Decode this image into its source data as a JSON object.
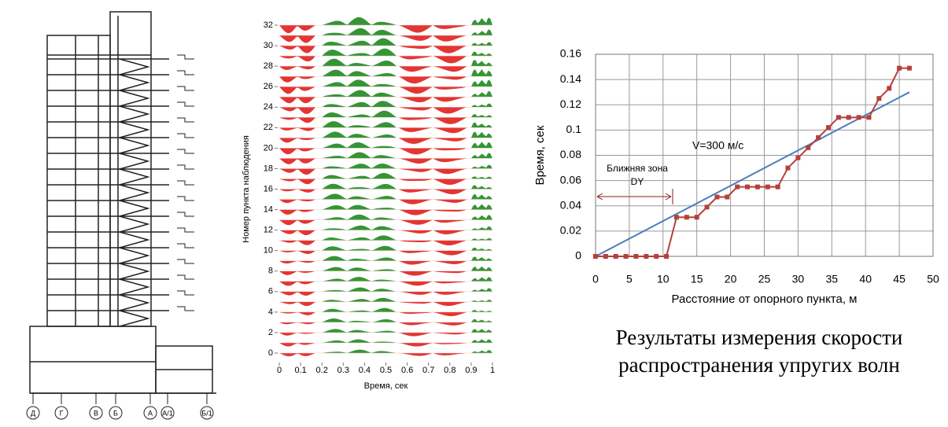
{
  "drawing": {
    "axis_labels": [
      "Д",
      "Г",
      "В",
      "Б",
      "А",
      "А/1",
      "Б/1"
    ]
  },
  "chart_data": [
    {
      "type": "wiggle",
      "xlabel": "Время, сек",
      "ylabel": "Номер пункта наблюдения",
      "xlim": [
        0,
        1
      ],
      "xticks": [
        0,
        0.1,
        0.2,
        0.3,
        0.4,
        0.5,
        0.6,
        0.7,
        0.8,
        0.9,
        1
      ],
      "ylim": [
        0,
        32
      ],
      "yticks": [
        0,
        2,
        4,
        6,
        8,
        10,
        12,
        14,
        16,
        18,
        20,
        22,
        24,
        26,
        28,
        30,
        32
      ],
      "colors": [
        "#e0201c",
        "#1f8a1f"
      ]
    },
    {
      "type": "line",
      "xlabel": "Расстояние от опорного пункта, м",
      "ylabel": "Время, сек",
      "xlim": [
        0,
        50
      ],
      "xticks": [
        0,
        5,
        10,
        15,
        20,
        25,
        30,
        35,
        40,
        45,
        50
      ],
      "ylim": [
        0,
        0.16
      ],
      "yticks": [
        0,
        0.02,
        0.04,
        0.06,
        0.08,
        0.1,
        0.12,
        0.14,
        0.16
      ],
      "grid": true,
      "annotations": [
        "V=300 м/с",
        "Ближняя зона",
        "DY"
      ],
      "series": [
        {
          "color": "#b5403b",
          "marker": "square",
          "x": [
            0,
            1.5,
            3,
            4.5,
            6,
            7.5,
            9,
            10.5,
            12,
            13.5,
            15,
            16.5,
            18,
            19.5,
            21,
            22.5,
            24,
            25.5,
            27,
            28.5,
            30,
            31.5,
            33,
            34.5,
            36,
            37.5,
            39,
            40.5,
            42,
            43.5,
            45,
            46.5
          ],
          "values": [
            0,
            0,
            0,
            0,
            0,
            0,
            0,
            0,
            0.031,
            0.031,
            0.031,
            0.039,
            0.047,
            0.047,
            0.055,
            0.055,
            0.055,
            0.055,
            0.055,
            0.07,
            0.078,
            0.086,
            0.094,
            0.102,
            0.11,
            0.11,
            0.11,
            0.11,
            0.125,
            0.133,
            0.149,
            0.149
          ]
        },
        {
          "color": "#4a7ebb",
          "marker": "none",
          "x": [
            0,
            46.5
          ],
          "values": [
            0,
            0.13
          ]
        }
      ]
    }
  ],
  "caption": [
    "Результаты измерения скорости",
    "распространения упругих волн"
  ]
}
